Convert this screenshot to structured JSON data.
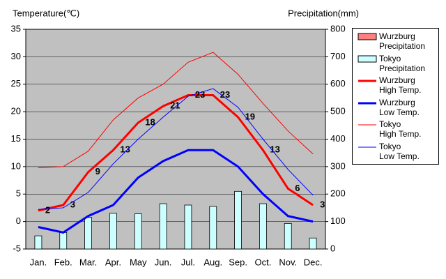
{
  "chart_data": {
    "type": "combo",
    "y_label": "Temperature(℃)",
    "y2_label": "Precipitation(mm)",
    "categories": [
      "Jan.",
      "Feb.",
      "Mar.",
      "Apr.",
      "May",
      "Jun.",
      "Jul.",
      "Aug.",
      "Sep.",
      "Oct.",
      "Nov.",
      "Dec."
    ],
    "ylim": [
      -5,
      35
    ],
    "yticks": [
      -5,
      0,
      5,
      10,
      15,
      20,
      25,
      30,
      35
    ],
    "y2lim": [
      0,
      800
    ],
    "y2ticks": [
      0,
      100,
      200,
      300,
      400,
      500,
      600,
      700,
      800
    ],
    "grid": true,
    "background": "#c0c0c0",
    "legend": "right",
    "series": [
      {
        "name": "Wurzburg\nPrecipitation",
        "type": "bar",
        "axis": "y2",
        "color": "#ff8080",
        "values": [
          null,
          null,
          null,
          null,
          null,
          null,
          null,
          null,
          null,
          null,
          null,
          null
        ]
      },
      {
        "name": "Tokyo\nPrecipitation",
        "type": "bar",
        "axis": "y2",
        "color": "#ccffff",
        "values": [
          48,
          60,
          115,
          130,
          128,
          165,
          160,
          155,
          210,
          165,
          93,
          40
        ]
      },
      {
        "name": "Wurzburg\nHigh Temp.",
        "type": "line",
        "color": "#ff0000",
        "width": 3,
        "show_labels": true,
        "values": [
          2,
          3,
          9,
          13,
          18,
          21,
          23,
          23,
          19,
          13,
          6,
          3
        ]
      },
      {
        "name": "Wurzburg\nLow Temp.",
        "type": "line",
        "color": "#0000ff",
        "width": 3,
        "values": [
          -1,
          -2,
          1,
          3,
          8,
          11,
          13,
          13,
          10,
          5,
          1,
          0
        ]
      },
      {
        "name": "Tokyo\nHigh Temp.",
        "type": "line",
        "color": "#ff0000",
        "width": 1,
        "values": [
          9.8,
          10,
          12.8,
          18.5,
          22.5,
          25,
          29,
          30.8,
          26.8,
          21.5,
          16.5,
          12.3
        ]
      },
      {
        "name": "Tokyo\nLow Temp.",
        "type": "line",
        "color": "#0000ff",
        "width": 1,
        "values": [
          2.2,
          2.5,
          5.3,
          10.5,
          15,
          19,
          22.8,
          24.2,
          20.8,
          15,
          9.5,
          4.8
        ]
      }
    ]
  }
}
